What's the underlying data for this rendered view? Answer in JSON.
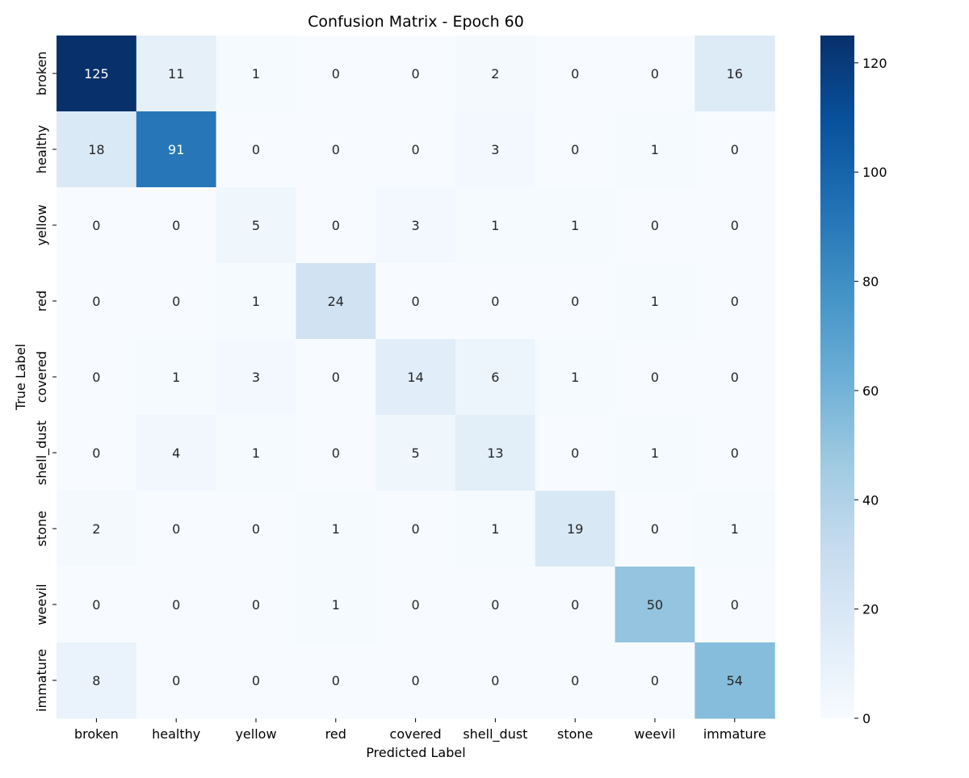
{
  "chart_data": {
    "type": "heatmap",
    "title": "Confusion Matrix - Epoch 60",
    "xlabel": "Predicted Label",
    "ylabel": "True Label",
    "x_categories": [
      "broken",
      "healthy",
      "yellow",
      "red",
      "covered",
      "shell_dust",
      "stone",
      "weevil",
      "immature"
    ],
    "y_categories": [
      "broken",
      "healthy",
      "yellow",
      "red",
      "covered",
      "shell_dust",
      "stone",
      "weevil",
      "immature"
    ],
    "matrix": [
      [
        125,
        11,
        1,
        0,
        0,
        2,
        0,
        0,
        16
      ],
      [
        18,
        91,
        0,
        0,
        0,
        3,
        0,
        1,
        0
      ],
      [
        0,
        0,
        5,
        0,
        3,
        1,
        1,
        0,
        0
      ],
      [
        0,
        0,
        1,
        24,
        0,
        0,
        0,
        1,
        0
      ],
      [
        0,
        1,
        3,
        0,
        14,
        6,
        1,
        0,
        0
      ],
      [
        0,
        4,
        1,
        0,
        5,
        13,
        0,
        1,
        0
      ],
      [
        2,
        0,
        0,
        1,
        0,
        1,
        19,
        0,
        1
      ],
      [
        0,
        0,
        0,
        1,
        0,
        0,
        0,
        50,
        0
      ],
      [
        8,
        0,
        0,
        0,
        0,
        0,
        0,
        0,
        54
      ]
    ],
    "colormap": "Blues",
    "colorbar": {
      "range": [
        0,
        125
      ],
      "ticks": [
        0,
        20,
        40,
        60,
        80,
        100,
        120
      ]
    },
    "grid": false,
    "annotations": "cell counts"
  }
}
